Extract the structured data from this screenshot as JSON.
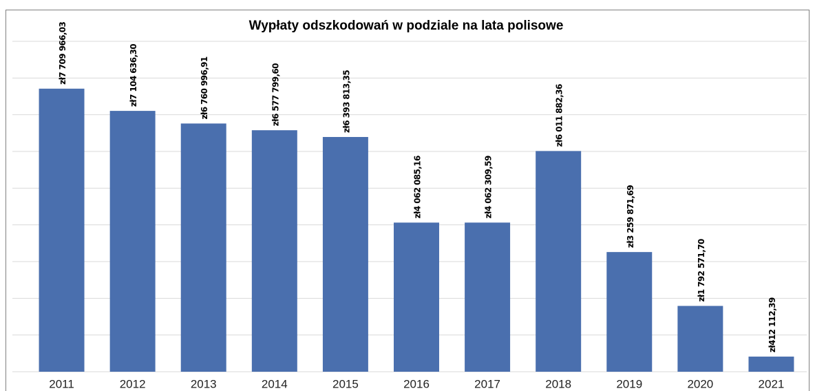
{
  "chart_data": {
    "type": "bar",
    "title": "Wypłaty odszkodowań  w podziale na lata polisowe",
    "categories": [
      "2011",
      "2012",
      "2013",
      "2014",
      "2015",
      "2016",
      "2017",
      "2018",
      "2019",
      "2020",
      "2021"
    ],
    "values": [
      7709966.03,
      7104636.3,
      6760996.91,
      6577799.6,
      6393813.35,
      4062085.16,
      4062309.59,
      6011882.36,
      3259871.69,
      1792571.7,
      412112.39
    ],
    "value_labels": [
      "zł7 709 966,03",
      "zł7 104 636,30",
      "zł6 760 996,91",
      "zł6 577 799,60",
      "zł6 393 813,35",
      "zł4 062 085,16",
      "zł4 062 309,59",
      "zł6 011 882,36",
      "zł3 259 871,69",
      "zł1 792 571,70",
      "zł412 112,39"
    ],
    "color": "#4a6fae",
    "ylim": [
      0,
      9000000
    ],
    "yticks": [
      0,
      1000000,
      2000000,
      3000000,
      4000000,
      5000000,
      6000000,
      7000000,
      8000000,
      9000000
    ],
    "grid": true
  }
}
